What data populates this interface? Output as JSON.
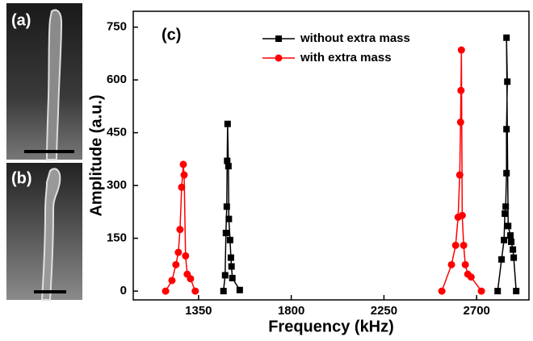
{
  "panel_labels": [
    "(a)",
    "(b)"
  ],
  "chart_data": {
    "type": "line",
    "panel_label": "(c)",
    "xlabel": "Frequency (kHz)",
    "ylabel": "Amplitude (a.u.)",
    "xlim": [
      1033,
      2954
    ],
    "ylim": [
      -25,
      795
    ],
    "xticks": [
      1350,
      1800,
      2250,
      2700
    ],
    "yticks": [
      0,
      150,
      300,
      450,
      600,
      750
    ],
    "legend": "top",
    "series": [
      {
        "name": "without extra mass",
        "color": "#000000",
        "marker": "square",
        "x": [
          1471,
          1479,
          1483,
          1487,
          1489,
          1491,
          1495,
          1497,
          1503,
          1507,
          1510,
          1514,
          1550,
          null,
          2802,
          2821,
          2833,
          2837,
          2841,
          2845,
          2845,
          2849,
          2845,
          2853,
          2864,
          2868,
          2876,
          2880,
          2892
        ],
        "values": [
          0,
          45,
          165,
          240,
          370,
          475,
          355,
          205,
          145,
          95,
          70,
          37,
          3,
          null,
          0,
          90,
          145,
          220,
          240,
          335,
          460,
          595,
          720,
          185,
          158,
          140,
          118,
          95,
          0
        ]
      },
      {
        "name": "with extra mass",
        "color": "#ff0000",
        "marker": "circle",
        "x": [
          1190,
          1221,
          1240,
          1252,
          1260,
          1268,
          1276,
          1280,
          1287,
          1295,
          1311,
          1334,
          null,
          2531,
          2578,
          2598,
          2610,
          2618,
          2622,
          2624,
          2626,
          2630,
          2637,
          2645,
          2657,
          2673,
          2723
        ],
        "values": [
          0,
          30,
          75,
          110,
          175,
          295,
          360,
          330,
          100,
          48,
          35,
          0,
          null,
          0,
          75,
          130,
          210,
          330,
          480,
          570,
          685,
          215,
          130,
          75,
          48,
          40,
          0
        ]
      }
    ]
  }
}
